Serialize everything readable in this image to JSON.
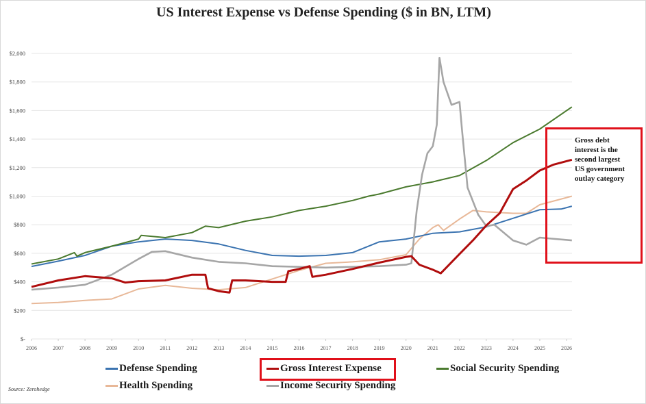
{
  "chart_data": {
    "type": "line",
    "title": "US Interest Expense vs Defense Spending ($ in BN, LTM)",
    "xlabel": "",
    "ylabel": "",
    "xlim": [
      2006,
      2026.2
    ],
    "ylim": [
      0,
      2000
    ],
    "x_ticks": [
      "2006",
      "2007",
      "2008",
      "2009",
      "2010",
      "2011",
      "2012",
      "2013",
      "2014",
      "2015",
      "2016",
      "2017",
      "2018",
      "2019",
      "2020",
      "2021",
      "2022",
      "2023",
      "2024",
      "2025",
      "2026"
    ],
    "y_ticks": [
      {
        "value": 0,
        "label": "$-"
      },
      {
        "value": 200,
        "label": "$200"
      },
      {
        "value": 400,
        "label": "$400"
      },
      {
        "value": 600,
        "label": "$600"
      },
      {
        "value": 800,
        "label": "$800"
      },
      {
        "value": 1000,
        "label": "$1,000"
      },
      {
        "value": 1200,
        "label": "$1,200"
      },
      {
        "value": 1400,
        "label": "$1,400"
      },
      {
        "value": 1600,
        "label": "$1,600"
      },
      {
        "value": 1800,
        "label": "$1,800"
      },
      {
        "value": 2000,
        "label": "$2,000"
      }
    ],
    "grid": true,
    "legend_position": "bottom",
    "series": [
      {
        "name": "Defense Spending",
        "color": "#3a73b0",
        "x": [
          2006,
          2007,
          2008,
          2009,
          2010,
          2011,
          2012,
          2013,
          2014,
          2015,
          2016,
          2017,
          2018,
          2019,
          2020,
          2021,
          2022,
          2023,
          2024,
          2025,
          2025.8,
          2026.2
        ],
        "y": [
          508,
          545,
          585,
          650,
          680,
          700,
          690,
          665,
          620,
          585,
          580,
          585,
          605,
          680,
          700,
          740,
          750,
          785,
          845,
          905,
          910,
          930
        ]
      },
      {
        "name": "Gross Interest Expense",
        "color": "#b00d0d",
        "x": [
          2006,
          2007,
          2008,
          2009,
          2009.5,
          2010,
          2011,
          2012,
          2012.5,
          2012.6,
          2013,
          2013.4,
          2013.5,
          2014,
          2015,
          2015.5,
          2015.6,
          2016,
          2016.4,
          2016.5,
          2017,
          2018,
          2019,
          2020,
          2020.2,
          2020.5,
          2021,
          2021.3,
          2022,
          2022.5,
          2023,
          2023.5,
          2024,
          2024.5,
          2025,
          2025.5,
          2026.2
        ],
        "y": [
          365,
          410,
          440,
          425,
          395,
          405,
          410,
          450,
          450,
          355,
          335,
          325,
          410,
          410,
          400,
          400,
          475,
          490,
          510,
          435,
          450,
          490,
          535,
          575,
          580,
          520,
          485,
          460,
          595,
          690,
          795,
          880,
          1050,
          1110,
          1180,
          1220,
          1255
        ]
      },
      {
        "name": "Social Security Spending",
        "color": "#4a7a2e",
        "x": [
          2006,
          2007,
          2007.6,
          2007.7,
          2008,
          2009,
          2010,
          2010.1,
          2011,
          2012,
          2012.5,
          2013,
          2014,
          2015,
          2016,
          2017,
          2018,
          2018.6,
          2019,
          2020,
          2021,
          2022,
          2023,
          2024,
          2025,
          2026.2
        ],
        "y": [
          525,
          560,
          605,
          580,
          605,
          650,
          700,
          725,
          710,
          745,
          790,
          780,
          825,
          855,
          900,
          930,
          970,
          1000,
          1015,
          1065,
          1100,
          1145,
          1250,
          1375,
          1470,
          1625
        ]
      },
      {
        "name": "Health Spending",
        "color": "#e8b898",
        "x": [
          2006,
          2007,
          2008,
          2009,
          2010,
          2011,
          2012,
          2013,
          2014,
          2015,
          2016,
          2017,
          2018,
          2019,
          2020,
          2020.5,
          2021,
          2021.2,
          2021.4,
          2022,
          2022.5,
          2023,
          2024,
          2024.5,
          2025,
          2026.2
        ],
        "y": [
          248,
          255,
          270,
          280,
          350,
          375,
          355,
          345,
          360,
          420,
          480,
          530,
          540,
          555,
          590,
          700,
          780,
          800,
          760,
          840,
          900,
          890,
          880,
          880,
          940,
          1000
        ]
      },
      {
        "name": "Income Security Spending",
        "color": "#a6a6a6",
        "x": [
          2006,
          2007,
          2008,
          2009,
          2010,
          2010.5,
          2011,
          2012,
          2013,
          2014,
          2015,
          2016,
          2017,
          2018,
          2019,
          2020,
          2020.2,
          2020.4,
          2020.6,
          2020.8,
          2021,
          2021.15,
          2021.25,
          2021.4,
          2021.7,
          2022,
          2022.1,
          2022.3,
          2022.7,
          2023,
          2023.3,
          2024,
          2024.5,
          2025,
          2026.2
        ],
        "y": [
          345,
          360,
          380,
          450,
          560,
          610,
          615,
          570,
          540,
          530,
          510,
          505,
          500,
          505,
          510,
          520,
          530,
          900,
          1150,
          1300,
          1350,
          1500,
          1970,
          1800,
          1640,
          1660,
          1450,
          1060,
          870,
          790,
          800,
          690,
          660,
          710,
          690
        ]
      }
    ]
  },
  "annotation": {
    "lines": [
      "Gross debt",
      "interest is the",
      "second largest",
      "US government",
      "outlay category"
    ]
  },
  "source": "Source: Zerohedge"
}
